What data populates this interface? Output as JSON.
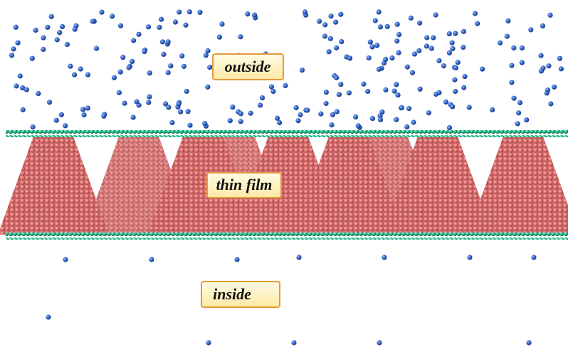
{
  "labels": {
    "outside": "outside",
    "film": "thin film",
    "inside": "inside"
  }
}
